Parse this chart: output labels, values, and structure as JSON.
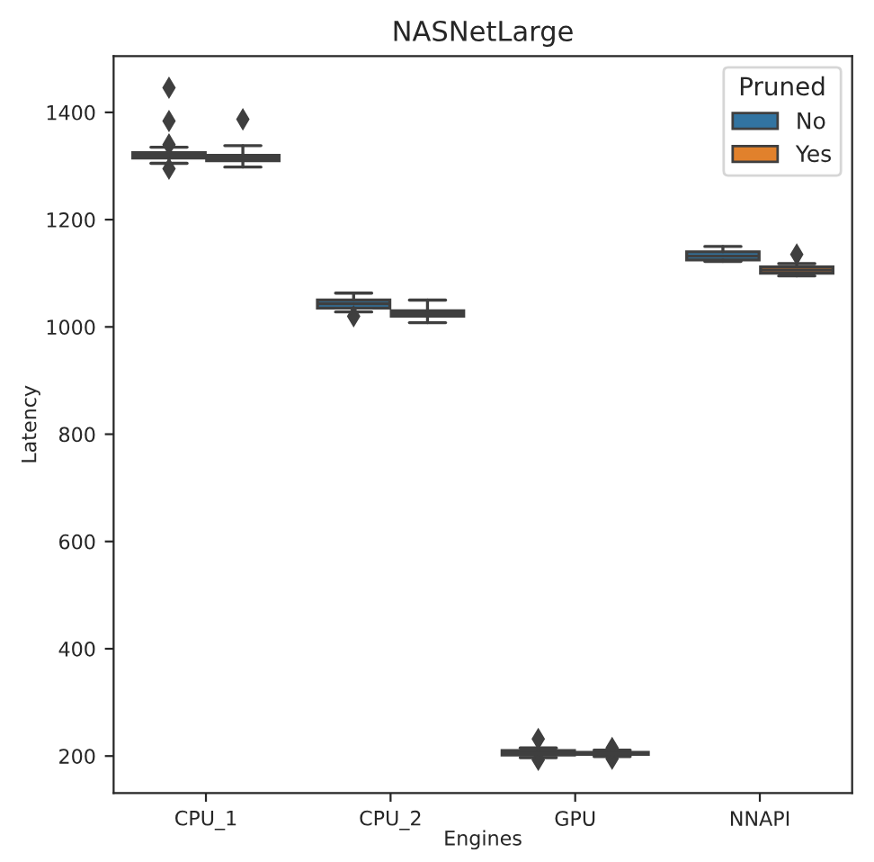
{
  "chart_data": {
    "type": "box",
    "title": "NASNetLarge",
    "xlabel": "Engines",
    "ylabel": "Latency",
    "legend_title": "Pruned",
    "categories": [
      "CPU_1",
      "CPU_2",
      "GPU",
      "NNAPI"
    ],
    "ylim": [
      131,
      1505
    ],
    "yticks": [
      200,
      400,
      600,
      800,
      1000,
      1200,
      1400
    ],
    "grid": false,
    "legend": "top right",
    "series": [
      {
        "name": "No",
        "color": "#3274a1",
        "boxes": [
          {
            "low": 1305,
            "q1": 1315,
            "median": 1320,
            "q3": 1325,
            "high": 1335,
            "outliers": [
              1446,
              1384,
              1340,
              1295
            ]
          },
          {
            "low": 1028,
            "q1": 1035,
            "median": 1043,
            "q3": 1050,
            "high": 1063,
            "outliers": [
              1020
            ]
          },
          {
            "low": 197,
            "q1": 202,
            "median": 205,
            "q3": 210,
            "high": 215,
            "outliers": [
              232,
              193
            ]
          },
          {
            "low": 1122,
            "q1": 1125,
            "median": 1132,
            "q3": 1140,
            "high": 1150
          }
        ]
      },
      {
        "name": "Yes",
        "color": "#e1812c",
        "boxes": [
          {
            "low": 1298,
            "q1": 1310,
            "median": 1315,
            "q3": 1320,
            "high": 1338,
            "outliers": [
              1387
            ]
          },
          {
            "low": 1008,
            "q1": 1020,
            "median": 1025,
            "q3": 1030,
            "high": 1050
          },
          {
            "low": 199,
            "q1": 203,
            "median": 205,
            "q3": 207,
            "high": 211,
            "outliers": [
              195,
              215
            ]
          },
          {
            "low": 1095,
            "q1": 1100,
            "median": 1106,
            "q3": 1112,
            "high": 1118,
            "outliers": [
              1135
            ]
          }
        ]
      }
    ]
  }
}
